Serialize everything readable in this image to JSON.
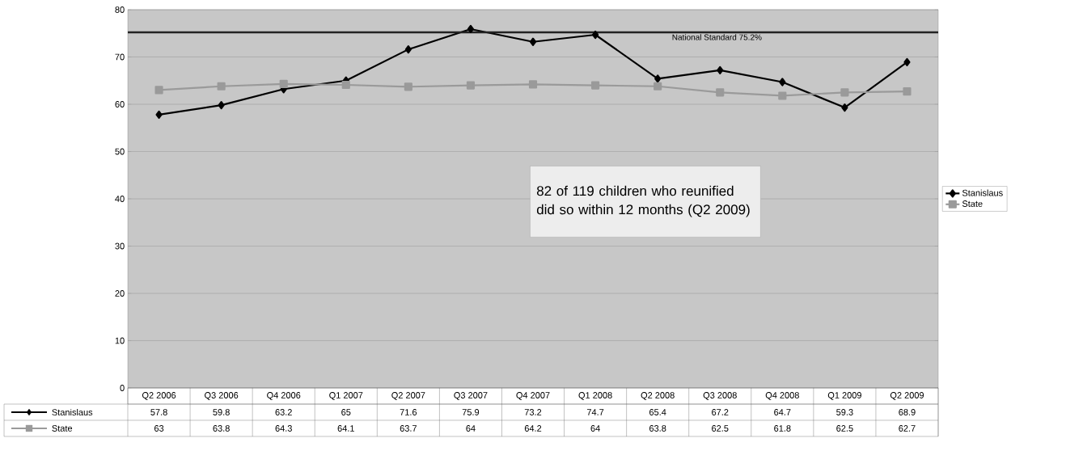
{
  "chart_data": {
    "type": "line",
    "categories": [
      "Q2 2006",
      "Q3 2006",
      "Q4 2006",
      "Q1 2007",
      "Q2 2007",
      "Q3 2007",
      "Q4 2007",
      "Q1 2008",
      "Q2 2008",
      "Q3 2008",
      "Q4 2008",
      "Q1 2009",
      "Q2 2009"
    ],
    "series": [
      {
        "name": "Stanislaus",
        "color": "#000000",
        "marker": "diamond",
        "values": [
          57.8,
          59.8,
          63.2,
          65,
          71.6,
          75.9,
          73.2,
          74.7,
          65.4,
          67.2,
          64.7,
          59.3,
          68.9
        ]
      },
      {
        "name": "State",
        "color": "#9a9a9a",
        "marker": "square",
        "values": [
          63,
          63.8,
          64.3,
          64.1,
          63.7,
          64,
          64.2,
          64,
          63.8,
          62.5,
          61.8,
          62.5,
          62.7
        ]
      }
    ],
    "ylim": [
      0,
      80
    ],
    "yticks": [
      0,
      10,
      20,
      30,
      40,
      50,
      60,
      70,
      80
    ],
    "grid": "y",
    "legend": "right",
    "data_labels": true,
    "ref_lines": [
      {
        "axis": "y",
        "value": 75.2,
        "label": "National Standard 75.2%",
        "color": "#222222"
      }
    ],
    "annotations": [
      "82 of 119 children who reunified did so within 12 months (Q2 2009)"
    ]
  }
}
